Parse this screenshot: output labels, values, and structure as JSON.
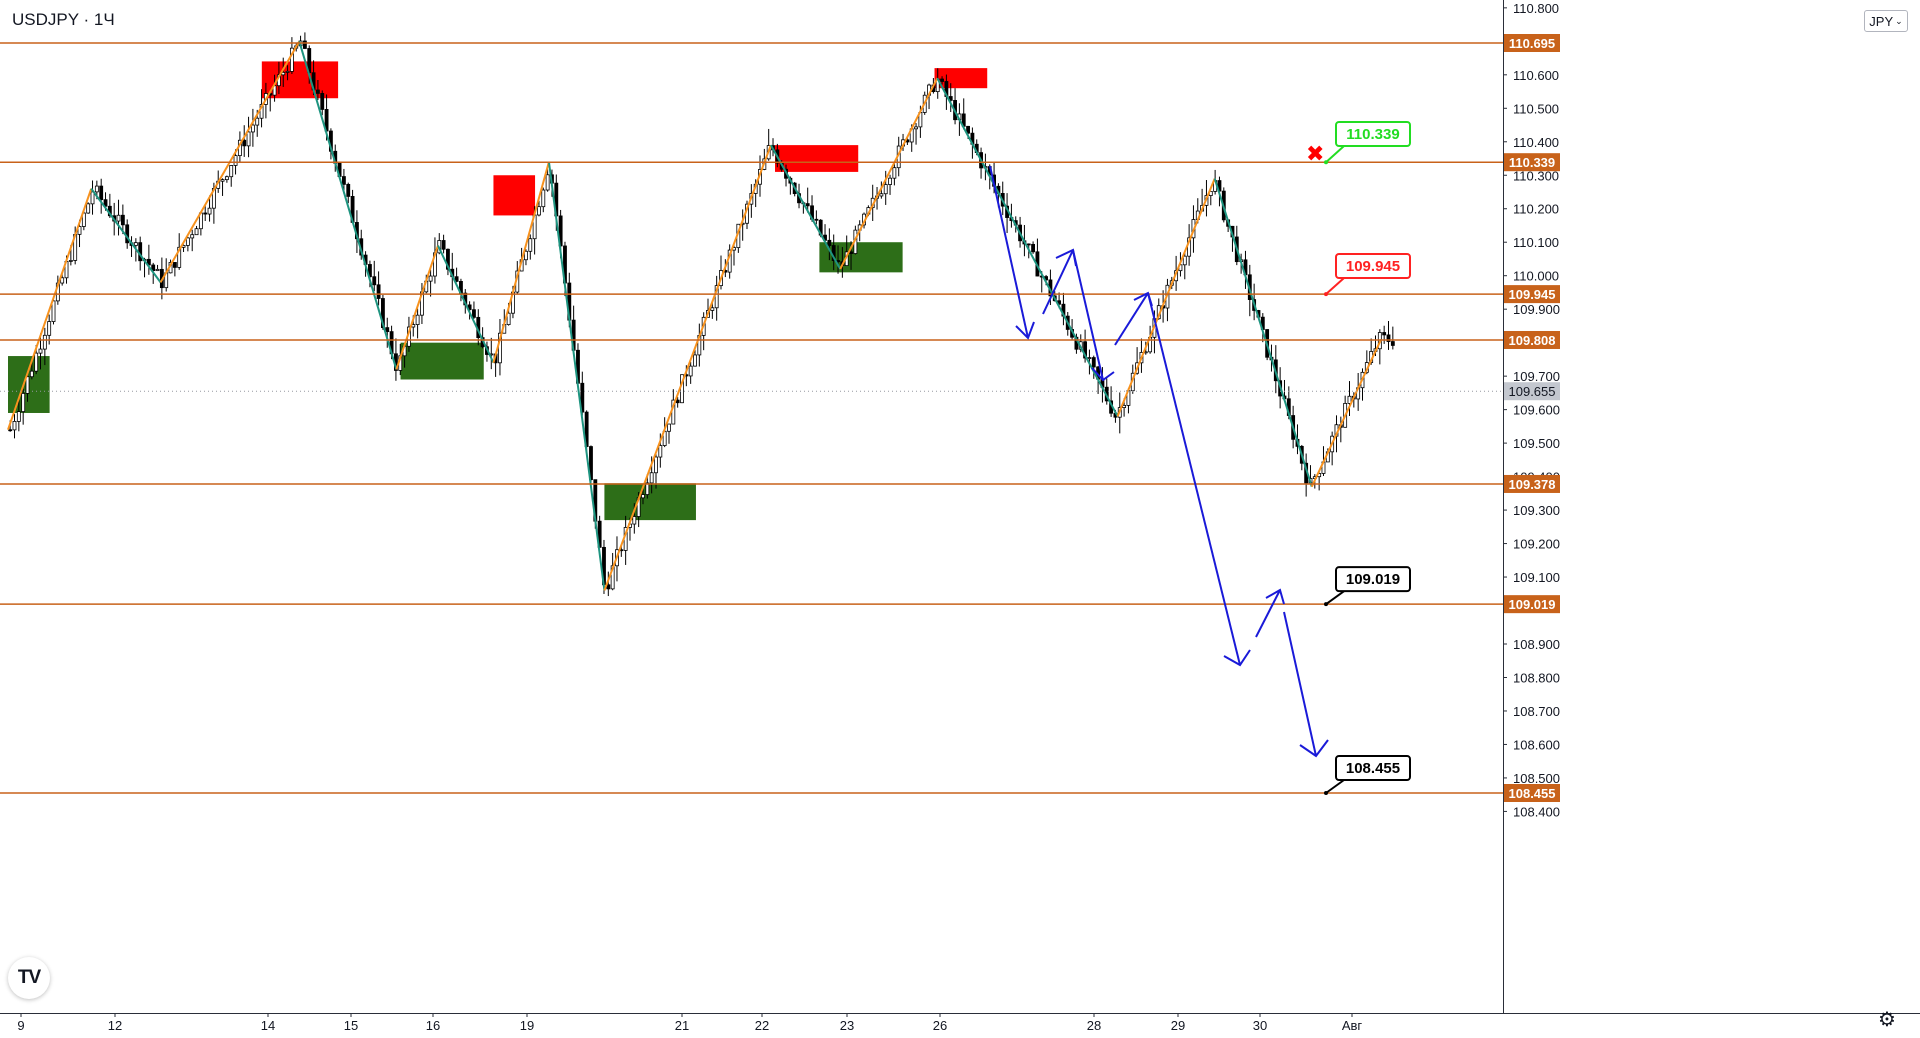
{
  "header": {
    "symbol": "USDJPY",
    "separator": "·",
    "interval": "1Ч",
    "currency_button": "JPY",
    "logo_text": "TV"
  },
  "icons": {
    "currency_dropdown": "chevron-down-icon",
    "settings": "gear-icon",
    "logo": "tradingview-logo-icon",
    "stop_marker": "cross-icon"
  },
  "colors": {
    "bull_candle": "#000000",
    "level_line": "#c8621a",
    "level_tag": "#c8621a",
    "supply_zone": "#ff0000",
    "demand_zone": "#2d6e18",
    "zigzag_up": "#f7921e",
    "zigzag_down": "#1e9480",
    "forecast": "#1a1ad8",
    "callout_green": "#22dd22",
    "callout_red": "#ff2222",
    "callout_black": "#000000",
    "current_price_tag": "#c3c7cf"
  },
  "chart_data": {
    "type": "candlestick",
    "symbol": "USDJPY",
    "timeframe": "1Ч",
    "ylim": [
      108.38,
      110.83
    ],
    "x_tick_labels": [
      "9",
      "12",
      "14",
      "15",
      "16",
      "19",
      "21",
      "22",
      "23",
      "26",
      "28",
      "29",
      "30",
      "Авг"
    ],
    "y_tick_labels": [
      "110.800",
      "110.600",
      "110.500",
      "110.400",
      "110.300",
      "110.200",
      "110.100",
      "110.000",
      "109.900",
      "109.700",
      "109.600",
      "109.500",
      "109.400",
      "109.300",
      "109.200",
      "109.100",
      "108.900",
      "108.800",
      "108.700",
      "108.600",
      "108.500",
      "108.400"
    ],
    "y_tick_values": [
      110.8,
      110.6,
      110.5,
      110.4,
      110.3,
      110.2,
      110.1,
      110.0,
      109.9,
      109.7,
      109.6,
      109.5,
      109.4,
      109.3,
      109.2,
      109.1,
      108.9,
      108.8,
      108.7,
      108.6,
      108.5,
      108.4
    ],
    "current_price": "109.655",
    "current_price_value": 109.655,
    "levels": [
      {
        "label": "110.695",
        "value": 110.695
      },
      {
        "label": "110.339",
        "value": 110.339
      },
      {
        "label": "109.945",
        "value": 109.945
      },
      {
        "label": "109.808",
        "value": 109.808
      },
      {
        "label": "109.378",
        "value": 109.378
      },
      {
        "label": "109.019",
        "value": 109.019
      },
      {
        "label": "108.455",
        "value": 108.455
      }
    ],
    "callouts": [
      {
        "label": "110.339",
        "value": 110.339,
        "style": "green"
      },
      {
        "label": "109.945",
        "value": 109.945,
        "style": "red"
      },
      {
        "label": "109.019",
        "value": 109.019,
        "style": "black"
      },
      {
        "label": "108.455",
        "value": 108.455,
        "style": "black"
      }
    ],
    "zigzag": [
      {
        "t": 0.0,
        "p": 109.54
      },
      {
        "t": 0.06,
        "p": 110.26
      },
      {
        "t": 0.11,
        "p": 109.98
      },
      {
        "t": 0.21,
        "p": 110.7
      },
      {
        "t": 0.28,
        "p": 109.72
      },
      {
        "t": 0.31,
        "p": 110.09
      },
      {
        "t": 0.35,
        "p": 109.74
      },
      {
        "t": 0.39,
        "p": 110.34
      },
      {
        "t": 0.43,
        "p": 109.06
      },
      {
        "t": 0.55,
        "p": 110.39
      },
      {
        "t": 0.6,
        "p": 110.02
      },
      {
        "t": 0.67,
        "p": 110.59
      },
      {
        "t": 0.8,
        "p": 109.58
      },
      {
        "t": 0.87,
        "p": 110.29
      },
      {
        "t": 0.94,
        "p": 109.37
      },
      {
        "t": 0.99,
        "p": 109.81
      }
    ],
    "supply_zones": [
      {
        "t0": 0.183,
        "t1": 0.238,
        "top": 110.64,
        "bottom": 110.53
      },
      {
        "t0": 0.35,
        "t1": 0.38,
        "top": 110.3,
        "bottom": 110.18
      },
      {
        "t0": 0.553,
        "t1": 0.613,
        "top": 110.39,
        "bottom": 110.31
      },
      {
        "t0": 0.668,
        "t1": 0.706,
        "top": 110.62,
        "bottom": 110.56
      }
    ],
    "demand_zones": [
      {
        "t0": 0.0,
        "t1": 0.03,
        "top": 109.76,
        "bottom": 109.59
      },
      {
        "t0": 0.283,
        "t1": 0.343,
        "top": 109.8,
        "bottom": 109.69
      },
      {
        "t0": 0.43,
        "t1": 0.496,
        "top": 109.38,
        "bottom": 109.27
      },
      {
        "t0": 0.585,
        "t1": 0.645,
        "top": 110.1,
        "bottom": 110.01
      }
    ]
  }
}
